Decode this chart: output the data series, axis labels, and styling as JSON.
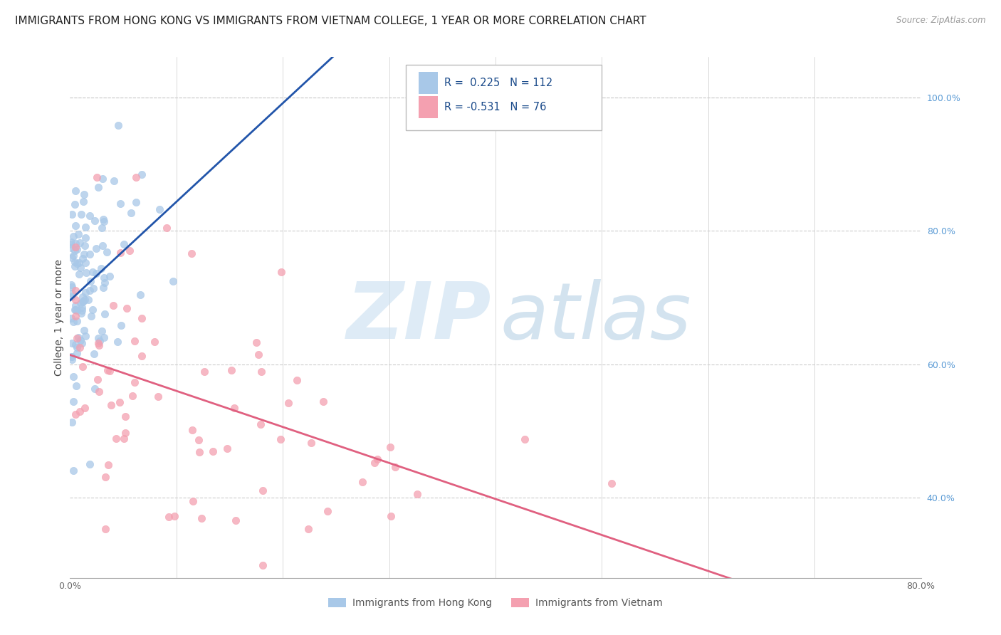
{
  "title": "IMMIGRANTS FROM HONG KONG VS IMMIGRANTS FROM VIETNAM COLLEGE, 1 YEAR OR MORE CORRELATION CHART",
  "source": "Source: ZipAtlas.com",
  "ylabel": "College, 1 year or more",
  "xlim": [
    0.0,
    0.8
  ],
  "ylim": [
    0.28,
    1.06
  ],
  "x_ticks": [
    0.0,
    0.1,
    0.2,
    0.3,
    0.4,
    0.5,
    0.6,
    0.7,
    0.8
  ],
  "x_tick_labels": [
    "0.0%",
    "",
    "",
    "",
    "",
    "",
    "",
    "",
    "80.0%"
  ],
  "right_y_ticks": [
    0.4,
    0.6,
    0.8,
    1.0
  ],
  "right_y_tick_labels": [
    "40.0%",
    "60.0%",
    "80.0%",
    "100.0%"
  ],
  "blue_R": "0.225",
  "blue_N": "112",
  "pink_R": "-0.531",
  "pink_N": "76",
  "legend_label_blue": "Immigrants from Hong Kong",
  "legend_label_pink": "Immigrants from Vietnam",
  "blue_color": "#a8c8e8",
  "pink_color": "#f4a0b0",
  "blue_line_color": "#2255aa",
  "pink_line_color": "#e06080",
  "right_axis_color": "#5b9bd5",
  "watermark_zip_color": "#c8dff0",
  "watermark_atlas_color": "#a8c8e0",
  "title_fontsize": 11,
  "axis_fontsize": 10,
  "tick_fontsize": 9,
  "legend_fontsize": 10,
  "seed_blue": 99,
  "seed_pink": 55
}
